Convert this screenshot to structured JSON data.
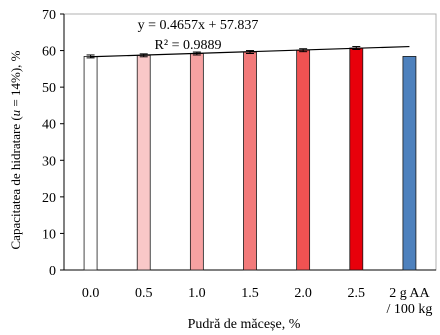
{
  "chart_data": {
    "type": "bar",
    "categories": [
      "0.0",
      "0.5",
      "1.0",
      "1.5",
      "2.0",
      "2.5",
      "2 g AA\n/ 100 kg"
    ],
    "values": [
      58.4,
      58.7,
      59.2,
      59.6,
      60.1,
      60.7,
      58.4
    ],
    "errors": [
      0.4,
      0.4,
      0.4,
      0.4,
      0.4,
      0.4,
      0.0
    ],
    "bar_colors": [
      "#ffffff",
      "#f9c8c8",
      "#f7a2a2",
      "#f27a7a",
      "#f05252",
      "#e8000b",
      "#4e81bd"
    ],
    "bar_edge": "#1a1a1a",
    "xlabel": "Pudră de măceșe, %",
    "ylabel": "Capacitatea de hidratare (u = 14%), %",
    "ylim": [
      0,
      70
    ],
    "yticks": [
      0,
      10,
      20,
      30,
      40,
      50,
      60,
      70
    ],
    "grid": false,
    "trendline": {
      "slope": 0.4657,
      "intercept": 57.837,
      "x_start": 1,
      "x_end": 7,
      "equation": "y = 0.4657x + 57.837",
      "r2": "R² = 0.9889"
    }
  }
}
